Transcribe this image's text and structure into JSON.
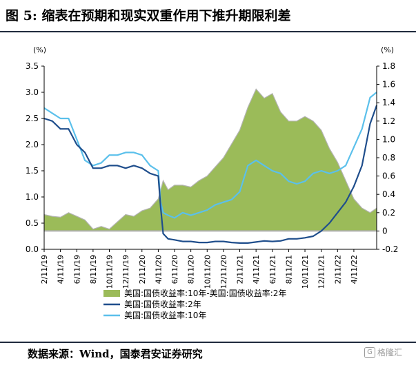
{
  "figure": {
    "title": "图 5:  缩表在预期和现实双重作用下推升期限利差",
    "source": "数据来源：Wind，国泰君安证券研究",
    "watermark": "格隆汇"
  },
  "colors": {
    "spread_fill": "#9bbb59",
    "spread_overlay": "#b3b3b3",
    "y2": "#1f4e8c",
    "y10": "#5bc0eb",
    "zero_line": "#b0b0b0"
  },
  "chart_data": {
    "type": "line",
    "title": "",
    "xlabel": "",
    "left_axis": {
      "unit_label": "(%)",
      "ylim": [
        0,
        3.5
      ],
      "ticks": [
        "0.0",
        "0.5",
        "1.0",
        "1.5",
        "2.0",
        "2.5",
        "3.0",
        "3.5"
      ]
    },
    "right_axis": {
      "unit_label": "(%)",
      "ylim": [
        -0.2,
        1.8
      ],
      "ticks": [
        "-0.2",
        "0",
        "0.2",
        "0.4",
        "0.6",
        "0.8",
        "1.0",
        "1.2",
        "1.4",
        "1.6",
        "1.8"
      ]
    },
    "x_tick_labels": [
      "2/11/19",
      "4/11/19",
      "6/11/19",
      "8/11/19",
      "10/11/19",
      "12/11/19",
      "2/11/20",
      "4/11/20",
      "6/11/20",
      "8/11/20",
      "10/11/20",
      "12/11/20",
      "2/11/21",
      "4/11/21",
      "6/11/21",
      "8/11/21",
      "10/11/21",
      "12/11/21",
      "2/11/22",
      "4/11/22"
    ],
    "series": [
      {
        "name": "美国:国债收益率:10年-美国:国债收益率:2年",
        "kind": "area",
        "axis": "right",
        "x": [
          0,
          0.5,
          1,
          1.5,
          2,
          2.5,
          3,
          3.5,
          4,
          4.5,
          5,
          5.5,
          6,
          6.5,
          7,
          7.3,
          7.6,
          8,
          8.5,
          9,
          9.5,
          10,
          10.5,
          11,
          11.5,
          12,
          12.5,
          13,
          13.5,
          14,
          14.5,
          15,
          15.5,
          16,
          16.5,
          17,
          17.5,
          18,
          18.5,
          19,
          19.5,
          20,
          20.4
        ],
        "values": [
          0.18,
          0.16,
          0.15,
          0.2,
          0.16,
          0.12,
          0.02,
          0.05,
          0.02,
          0.1,
          0.18,
          0.16,
          0.22,
          0.25,
          0.35,
          0.55,
          0.45,
          0.5,
          0.5,
          0.48,
          0.55,
          0.6,
          0.7,
          0.8,
          0.95,
          1.1,
          1.35,
          1.55,
          1.45,
          1.5,
          1.3,
          1.2,
          1.2,
          1.25,
          1.2,
          1.1,
          0.9,
          0.75,
          0.55,
          0.35,
          0.25,
          0.2,
          0.25
        ]
      },
      {
        "name": "美国:国债收益率:2年",
        "kind": "line",
        "axis": "left",
        "x": [
          0,
          0.5,
          1,
          1.5,
          2,
          2.5,
          3,
          3.5,
          4,
          4.5,
          5,
          5.5,
          6,
          6.5,
          7,
          7.15,
          7.3,
          7.6,
          8,
          8.5,
          9,
          9.5,
          10,
          10.5,
          11,
          11.5,
          12,
          12.5,
          13,
          13.5,
          14,
          14.5,
          15,
          15.5,
          16,
          16.5,
          17,
          17.5,
          18,
          18.5,
          19,
          19.5,
          20,
          20.4
        ],
        "values": [
          2.5,
          2.45,
          2.3,
          2.3,
          2.0,
          1.85,
          1.55,
          1.55,
          1.6,
          1.6,
          1.55,
          1.6,
          1.55,
          1.45,
          1.4,
          0.8,
          0.3,
          0.2,
          0.18,
          0.15,
          0.15,
          0.13,
          0.13,
          0.15,
          0.15,
          0.13,
          0.12,
          0.12,
          0.14,
          0.16,
          0.15,
          0.16,
          0.2,
          0.2,
          0.22,
          0.25,
          0.35,
          0.5,
          0.7,
          0.9,
          1.2,
          1.6,
          2.4,
          2.75
        ]
      },
      {
        "name": "美国:国债收益率:10年",
        "kind": "line",
        "axis": "left",
        "x": [
          0,
          0.5,
          1,
          1.5,
          2,
          2.5,
          3,
          3.5,
          4,
          4.5,
          5,
          5.5,
          6,
          6.5,
          7,
          7.15,
          7.3,
          7.6,
          8,
          8.5,
          9,
          9.5,
          10,
          10.5,
          11,
          11.5,
          12,
          12.5,
          13,
          13.5,
          14,
          14.5,
          15,
          15.5,
          16,
          16.5,
          17,
          17.5,
          18,
          18.5,
          19,
          19.5,
          20,
          20.4
        ],
        "values": [
          2.7,
          2.6,
          2.5,
          2.5,
          2.1,
          1.7,
          1.6,
          1.65,
          1.8,
          1.8,
          1.85,
          1.85,
          1.8,
          1.6,
          1.5,
          0.9,
          0.7,
          0.65,
          0.6,
          0.7,
          0.65,
          0.7,
          0.75,
          0.85,
          0.9,
          0.95,
          1.1,
          1.6,
          1.7,
          1.6,
          1.5,
          1.45,
          1.3,
          1.25,
          1.3,
          1.45,
          1.5,
          1.45,
          1.5,
          1.6,
          1.95,
          2.3,
          2.9,
          3.0
        ]
      }
    ],
    "legend_position": "bottom",
    "grid": false
  }
}
